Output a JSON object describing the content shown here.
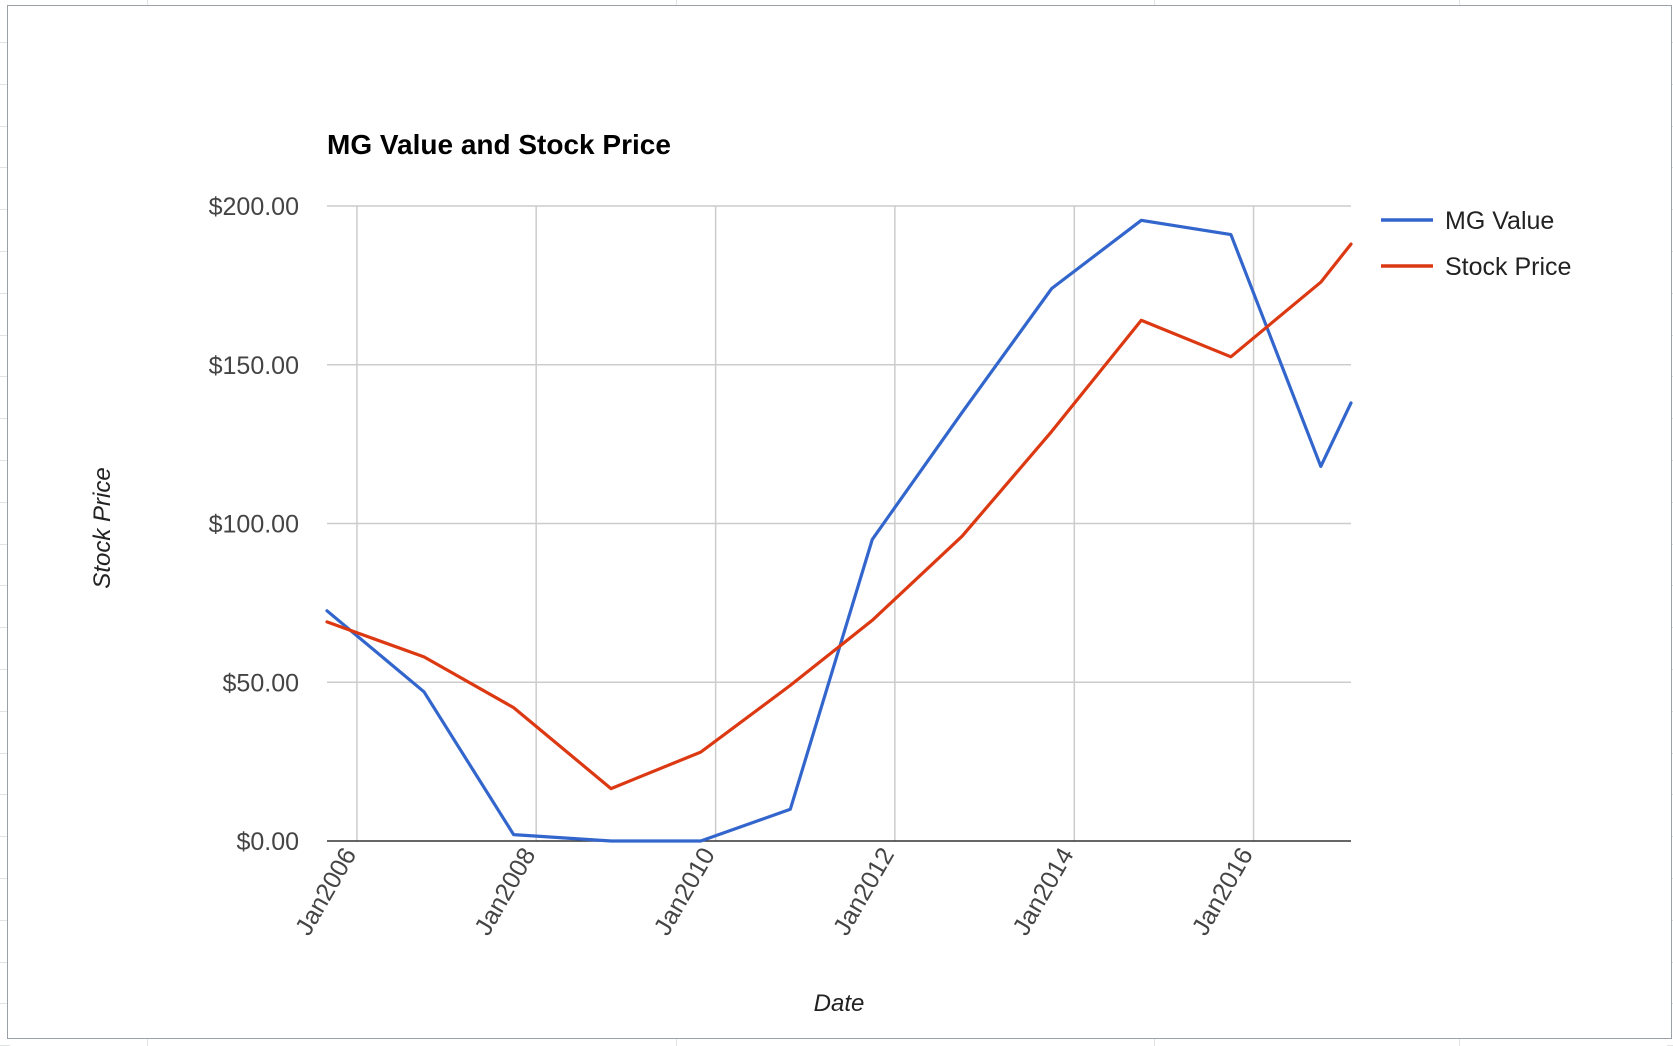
{
  "chart_data": {
    "type": "line",
    "title": "MG Value and Stock Price",
    "xlabel": "Date",
    "ylabel": "Stock Price",
    "xlim": [
      "2005-09-01",
      "2017-02-01"
    ],
    "ylim": [
      0,
      200
    ],
    "y_ticks": [
      "$0.00",
      "$50.00",
      "$100.00",
      "$150.00",
      "$200.00"
    ],
    "x_ticks": [
      {
        "date": "2006-01-01",
        "label": "Jan2006"
      },
      {
        "date": "2008-01-01",
        "label": "Jan2008"
      },
      {
        "date": "2010-01-01",
        "label": "Jan2010"
      },
      {
        "date": "2012-01-01",
        "label": "Jan2012"
      },
      {
        "date": "2014-01-01",
        "label": "Jan2014"
      },
      {
        "date": "2016-01-01",
        "label": "Jan2016"
      }
    ],
    "grid": true,
    "legend_position": "right",
    "series": [
      {
        "name": "MG Value",
        "color": "#3366cc",
        "x": [
          "2005-09-01",
          "2006-10-01",
          "2007-10-01",
          "2008-11-01",
          "2009-11-01",
          "2010-11-01",
          "2011-10-01",
          "2012-10-01",
          "2013-10-01",
          "2014-10-01",
          "2015-10-01",
          "2016-10-01",
          "2017-02-01"
        ],
        "values": [
          72.5,
          47,
          2,
          0,
          0,
          10,
          95,
          135,
          174,
          195.5,
          191,
          118,
          138
        ]
      },
      {
        "name": "Stock Price",
        "color": "#dc3912",
        "x": [
          "2005-09-01",
          "2006-10-01",
          "2007-10-01",
          "2008-11-01",
          "2009-11-01",
          "2010-11-01",
          "2011-10-01",
          "2012-10-01",
          "2013-10-01",
          "2014-10-01",
          "2015-10-01",
          "2016-10-01",
          "2017-02-01"
        ],
        "values": [
          69,
          58,
          42,
          16.5,
          28,
          49,
          69.5,
          96,
          129,
          164,
          152.5,
          176,
          188
        ]
      }
    ]
  }
}
